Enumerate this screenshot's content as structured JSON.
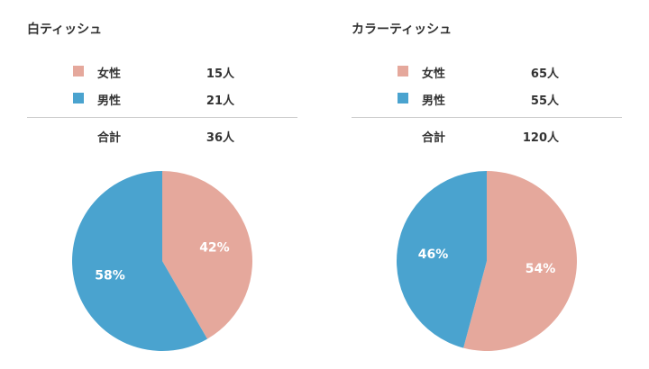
{
  "chart_data": [
    {
      "type": "pie",
      "title": "白ティッシュ",
      "slices": [
        {
          "label": "女性",
          "count": 15,
          "count_text": "15人",
          "percent": 42,
          "percent_text": "42%",
          "color": "#e5a89c"
        },
        {
          "label": "男性",
          "count": 21,
          "count_text": "21人",
          "percent": 58,
          "percent_text": "58%",
          "color": "#4aa3cf"
        }
      ],
      "total_label": "合計",
      "total_text": "36人",
      "total": 36
    },
    {
      "type": "pie",
      "title": "カラーティッシュ",
      "slices": [
        {
          "label": "女性",
          "count": 65,
          "count_text": "65人",
          "percent": 54,
          "percent_text": "54%",
          "color": "#e5a89c"
        },
        {
          "label": "男性",
          "count": 55,
          "count_text": "55人",
          "percent": 46,
          "percent_text": "46%",
          "color": "#4aa3cf"
        }
      ],
      "total_label": "合計",
      "total_text": "120人",
      "total": 120
    }
  ]
}
